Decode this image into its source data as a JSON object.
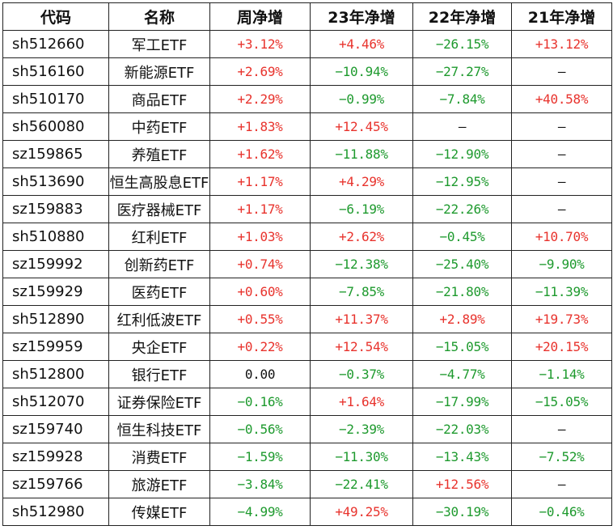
{
  "colors": {
    "up": "#e8332d",
    "down": "#1e9a2e",
    "flat": "#111111"
  },
  "headers": [
    "代码",
    "名称",
    "周净增",
    "23年净增",
    "22年净增",
    "21年净增"
  ],
  "rows": [
    {
      "code": "sh512660",
      "name": "军工ETF",
      "week": "+3.12%",
      "y23": "+4.46%",
      "y22": "−26.15%",
      "y21": "+13.12%"
    },
    {
      "code": "sh516160",
      "name": "新能源ETF",
      "week": "+2.69%",
      "y23": "−10.94%",
      "y22": "−27.27%",
      "y21": "—"
    },
    {
      "code": "sh510170",
      "name": "商品ETF",
      "week": "+2.29%",
      "y23": "−0.99%",
      "y22": "−7.84%",
      "y21": "+40.58%"
    },
    {
      "code": "sh560080",
      "name": "中药ETF",
      "week": "+1.83%",
      "y23": "+12.45%",
      "y22": "—",
      "y21": "—"
    },
    {
      "code": "sz159865",
      "name": "养殖ETF",
      "week": "+1.62%",
      "y23": "−11.88%",
      "y22": "−12.90%",
      "y21": "—"
    },
    {
      "code": "sh513690",
      "name": "恒生高股息ETF",
      "week": "+1.17%",
      "y23": "+4.29%",
      "y22": "−12.95%",
      "y21": "—"
    },
    {
      "code": "sz159883",
      "name": "医疗器械ETF",
      "week": "+1.17%",
      "y23": "−6.19%",
      "y22": "−22.26%",
      "y21": "—"
    },
    {
      "code": "sh510880",
      "name": "红利ETF",
      "week": "+1.03%",
      "y23": "+2.62%",
      "y22": "−0.45%",
      "y21": "+10.70%"
    },
    {
      "code": "sz159992",
      "name": "创新药ETF",
      "week": "+0.74%",
      "y23": "−12.38%",
      "y22": "−25.40%",
      "y21": "−9.90%"
    },
    {
      "code": "sz159929",
      "name": "医药ETF",
      "week": "+0.60%",
      "y23": "−7.85%",
      "y22": "−21.80%",
      "y21": "−11.39%"
    },
    {
      "code": "sh512890",
      "name": "红利低波ETF",
      "week": "+0.55%",
      "y23": "+11.37%",
      "y22": "+2.89%",
      "y21": "+19.73%"
    },
    {
      "code": "sz159959",
      "name": "央企ETF",
      "week": "+0.22%",
      "y23": "+12.54%",
      "y22": "−15.05%",
      "y21": "+20.15%"
    },
    {
      "code": "sh512800",
      "name": "银行ETF",
      "week": "0.00",
      "y23": "−0.37%",
      "y22": "−4.77%",
      "y21": "−1.14%"
    },
    {
      "code": "sh512070",
      "name": "证券保险ETF",
      "week": "−0.16%",
      "y23": "+1.64%",
      "y22": "−17.99%",
      "y21": "−15.05%"
    },
    {
      "code": "sz159740",
      "name": "恒生科技ETF",
      "week": "−0.56%",
      "y23": "−2.39%",
      "y22": "−22.03%",
      "y21": "—"
    },
    {
      "code": "sz159928",
      "name": "消费ETF",
      "week": "−1.59%",
      "y23": "−11.30%",
      "y22": "−13.43%",
      "y21": "−7.52%"
    },
    {
      "code": "sz159766",
      "name": "旅游ETF",
      "week": "−3.84%",
      "y23": "−22.41%",
      "y22": "+12.56%",
      "y21": "—"
    },
    {
      "code": "sh512980",
      "name": "传媒ETF",
      "week": "−4.99%",
      "y23": "+49.25%",
      "y22": "−30.19%",
      "y21": "−0.46%"
    }
  ]
}
